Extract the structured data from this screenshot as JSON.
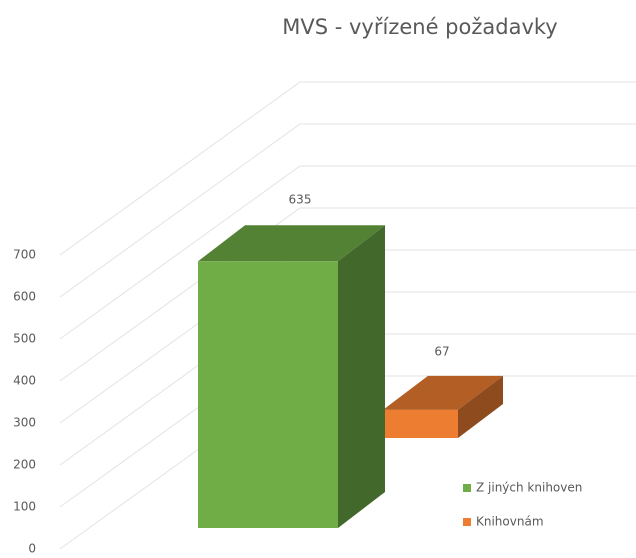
{
  "chart_data": {
    "type": "bar3d",
    "title": "MVS - vyřízené požadavky",
    "categories": [
      null
    ],
    "series": [
      {
        "name": "Z jiných knihoven",
        "color": "#70ad47",
        "values": [
          635
        ]
      },
      {
        "name": "Knihovnám",
        "color": "#ed7d31",
        "values": [
          67
        ]
      }
    ],
    "ylim": [
      0,
      700
    ],
    "yticks": [
      0,
      100,
      200,
      300,
      400,
      500,
      600,
      700
    ],
    "grid": true,
    "legend": "bottom-right"
  }
}
